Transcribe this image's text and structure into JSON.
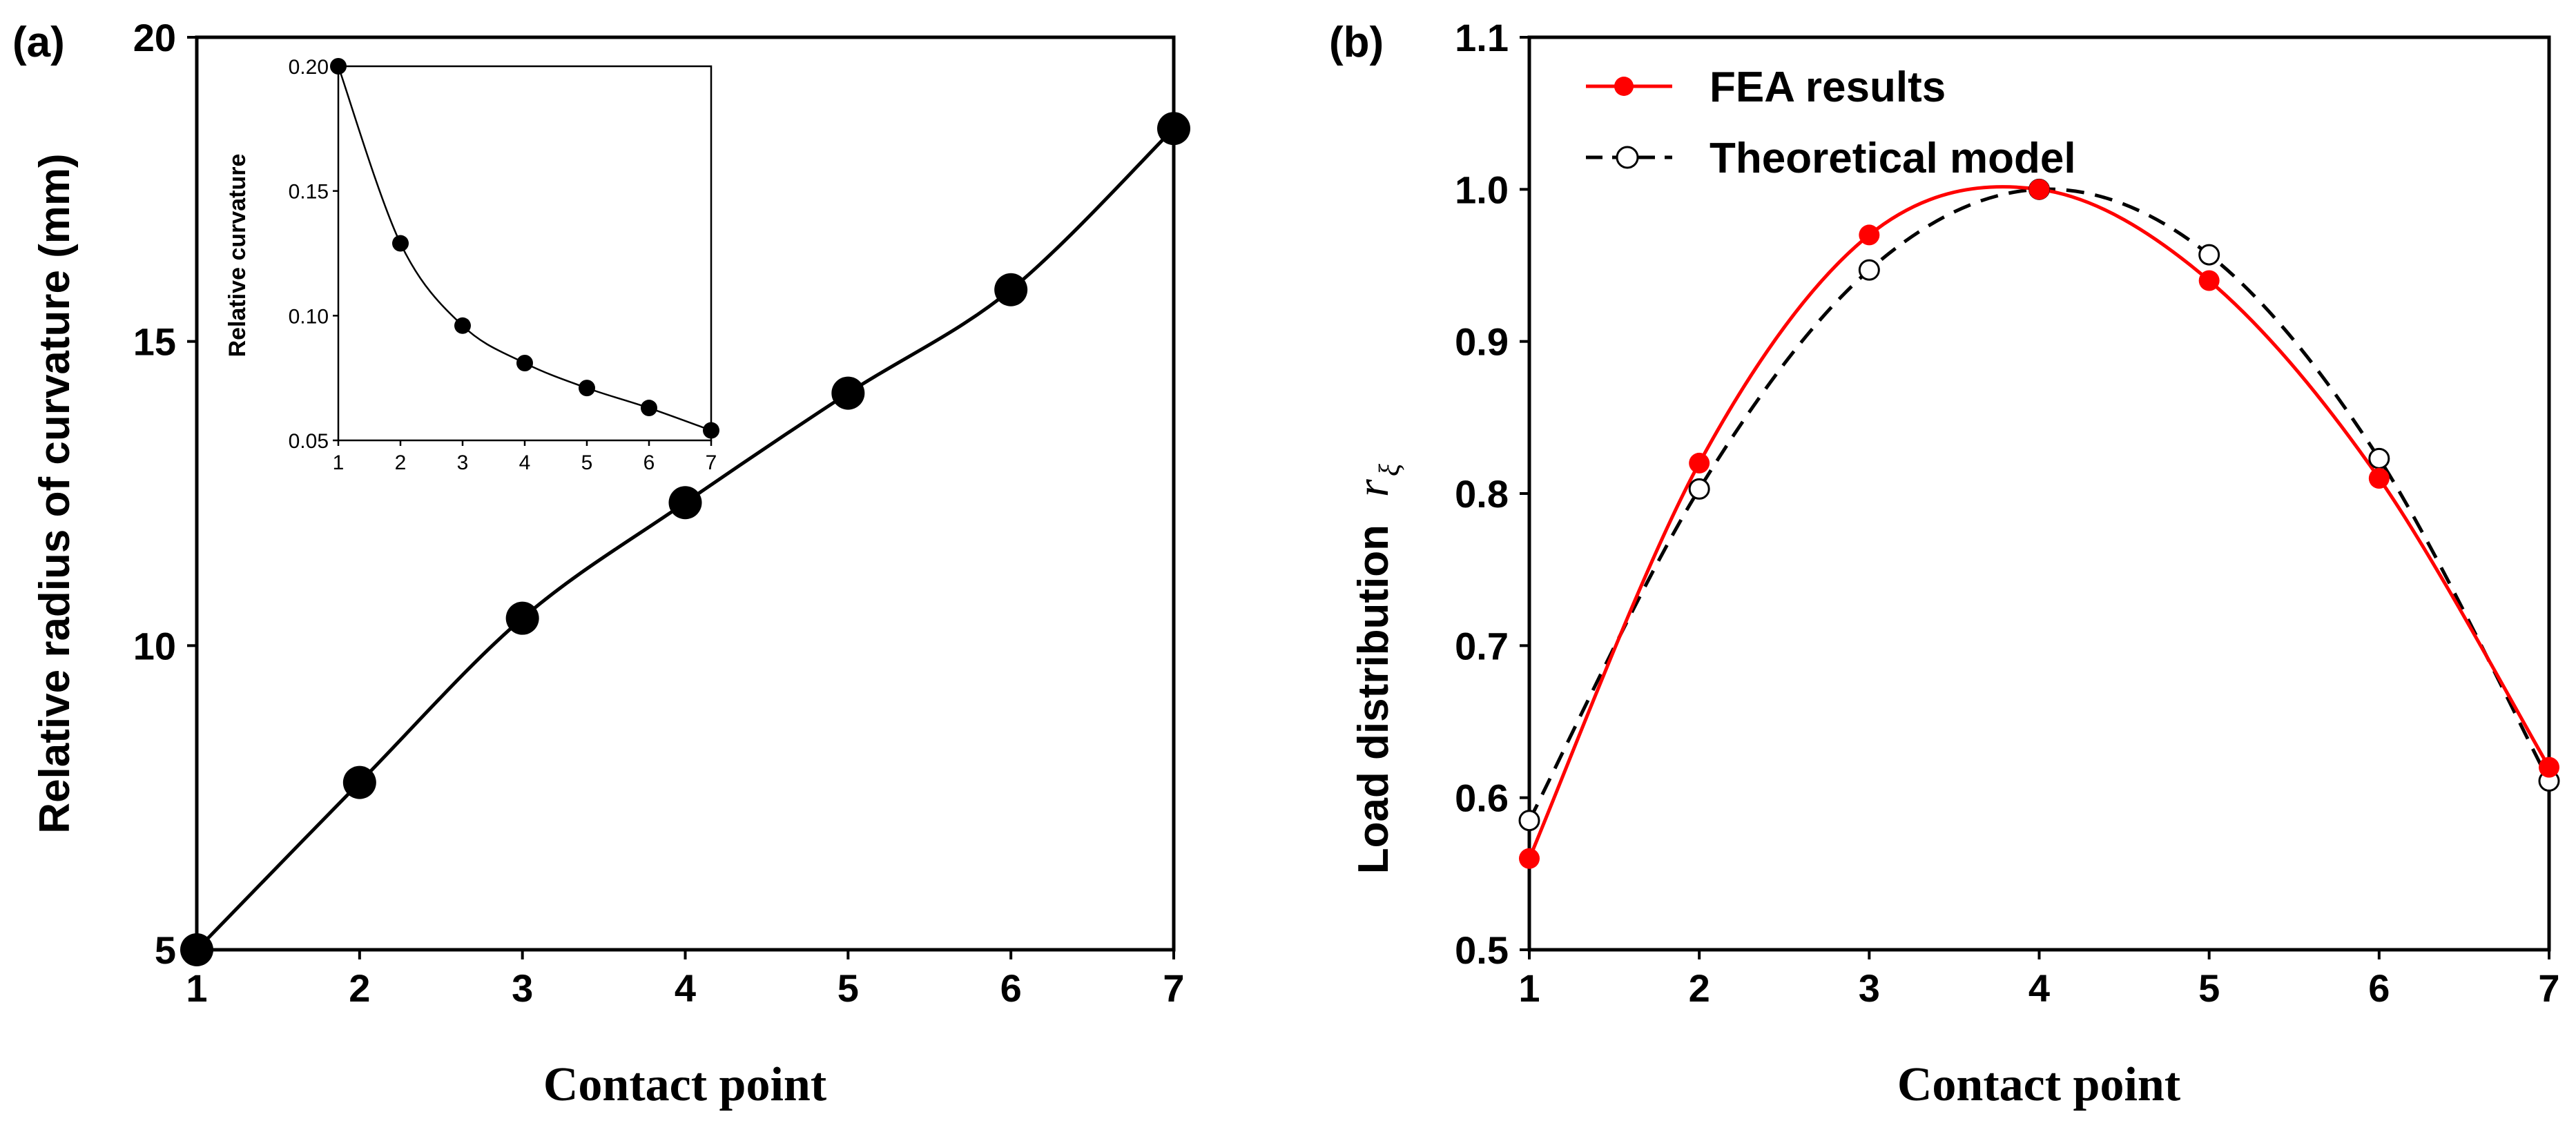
{
  "chart_data": [
    {
      "panel": "(a)",
      "type": "line",
      "xlabel": "Contact point",
      "ylabel": "Relative radius of curvature (mm)",
      "xlim": [
        1,
        7
      ],
      "ylim": [
        5,
        20
      ],
      "x_ticks": [
        1,
        2,
        3,
        4,
        5,
        6,
        7
      ],
      "y_ticks": [
        5,
        10,
        15,
        20
      ],
      "series": [
        {
          "name": "Relative radius of curvature",
          "x": [
            1,
            2,
            3,
            4,
            5,
            6,
            7
          ],
          "values": [
            5.0,
            7.75,
            10.45,
            12.35,
            14.15,
            15.85,
            18.5
          ],
          "color": "#000000"
        }
      ],
      "inset": {
        "type": "line",
        "xlabel": "",
        "ylabel": "Relative curvature",
        "xlim": [
          1,
          7
        ],
        "ylim": [
          0.05,
          0.2
        ],
        "x_ticks": [
          1,
          2,
          3,
          4,
          5,
          6,
          7
        ],
        "y_ticks": [
          "0.05",
          "0.10",
          "0.15",
          "0.20"
        ],
        "series": [
          {
            "name": "Relative curvature",
            "x": [
              1,
              2,
              3,
              4,
              5,
              6,
              7
            ],
            "values": [
              0.2,
              0.129,
              0.096,
              0.081,
              0.071,
              0.063,
              0.054
            ],
            "color": "#000000"
          }
        ]
      }
    },
    {
      "panel": "(b)",
      "type": "line",
      "xlabel": "Contact point",
      "ylabel": "Load distribution",
      "ylabel_symbol": "r",
      "ylabel_subscript": "ξ",
      "xlim": [
        1,
        7
      ],
      "ylim": [
        0.5,
        1.1
      ],
      "x_ticks": [
        1,
        2,
        3,
        4,
        5,
        6,
        7
      ],
      "y_ticks": [
        "0.5",
        "0.6",
        "0.7",
        "0.8",
        "0.9",
        "1.0",
        "1.1"
      ],
      "legend_position": "top-left",
      "series": [
        {
          "name": "FEA results",
          "x": [
            1,
            2,
            3,
            4,
            5,
            6,
            7
          ],
          "values": [
            0.56,
            0.82,
            0.97,
            1.0,
            0.94,
            0.81,
            0.62
          ],
          "color": "#ff0000",
          "style": "solid",
          "marker": "filled-circle"
        },
        {
          "name": "Theoretical model",
          "x": [
            1,
            2,
            3,
            4,
            5,
            6,
            7
          ],
          "values": [
            0.585,
            0.803,
            0.947,
            1.0,
            0.957,
            0.823,
            0.611
          ],
          "color": "#000000",
          "style": "dashed",
          "marker": "open-circle"
        }
      ]
    }
  ]
}
